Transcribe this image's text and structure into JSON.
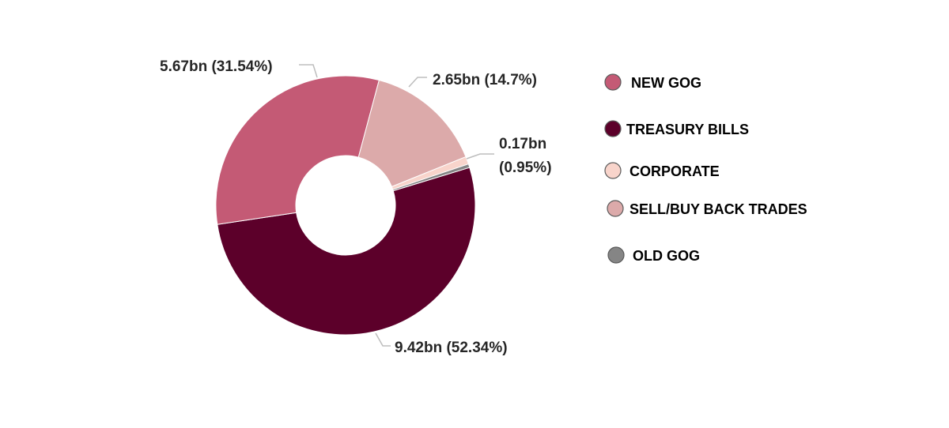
{
  "chart_data": {
    "type": "pie",
    "title": "",
    "legend_position": "right",
    "slices": [
      {
        "name": "TREASURY BILLS",
        "value": 9.42,
        "percent": 52.34,
        "label": "9.42bn (52.34%)",
        "color": "#5c002a"
      },
      {
        "name": "NEW GOG",
        "value": 5.67,
        "percent": 31.54,
        "label": "5.67bn (31.54%)",
        "color": "#c45a75"
      },
      {
        "name": "SELL/BUY BACK TRADES",
        "value": 2.65,
        "percent": 14.7,
        "label": "2.65bn (14.7%)",
        "color": "#dcaaaa"
      },
      {
        "name": "CORPORATE",
        "value": 0.17,
        "percent": 0.95,
        "label_lines": [
          "0.17bn",
          "(0.95%)"
        ],
        "color": "#f8d4cb"
      },
      {
        "name": "OLD GOG",
        "value": 0.08,
        "percent": 0.47,
        "color": "#858585"
      }
    ],
    "legend": [
      {
        "label": "NEW GOG",
        "color": "#c45a75"
      },
      {
        "label": "TREASURY BILLS",
        "color": "#5c002a"
      },
      {
        "label": "CORPORATE",
        "color": "#f8d4cb"
      },
      {
        "label": "SELL/BUY BACK TRADES",
        "color": "#dcaaaa"
      },
      {
        "label": "OLD GOG",
        "color": "#858585"
      }
    ]
  }
}
